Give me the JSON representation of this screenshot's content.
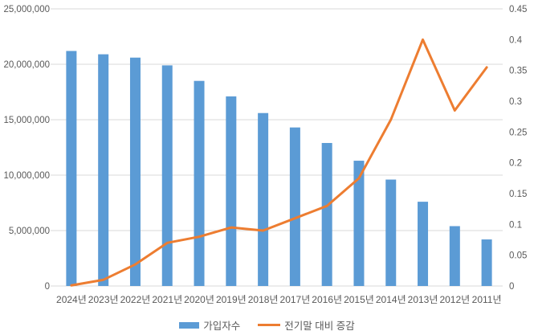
{
  "chart_data": {
    "type": "combo-bar-line",
    "title": "",
    "categories": [
      "2024년",
      "2023년",
      "2022년",
      "2021년",
      "2020년",
      "2019년",
      "2018년",
      "2017년",
      "2016년",
      "2015년",
      "2014년",
      "2013년",
      "2012년",
      "2011년"
    ],
    "series": [
      {
        "name": "가입자수",
        "type": "bar",
        "axis": "left",
        "color": "#5B9BD5",
        "values": [
          21200000,
          20900000,
          20600000,
          19900000,
          18500000,
          17100000,
          15600000,
          14300000,
          12900000,
          11300000,
          9600000,
          7600000,
          5400000,
          4200000
        ]
      },
      {
        "name": "전기말 대비 증감",
        "type": "line",
        "axis": "right",
        "color": "#ED7D31",
        "values": [
          0.001,
          0.01,
          0.035,
          0.07,
          0.08,
          0.095,
          0.09,
          0.11,
          0.13,
          0.175,
          0.27,
          0.4,
          0.285,
          0.355
        ]
      }
    ],
    "left_axis": {
      "min": 0,
      "max": 25000000,
      "step": 5000000,
      "tick_labels": [
        "0",
        "5,000,000",
        "10,000,000",
        "15,000,000",
        "20,000,000",
        "25,000,000"
      ]
    },
    "right_axis": {
      "min": 0,
      "max": 0.45,
      "step": 0.05,
      "tick_labels": [
        "0",
        "0.05",
        "0.1",
        "0.15",
        "0.2",
        "0.25",
        "0.3",
        "0.35",
        "0.4",
        "0.45"
      ]
    },
    "grid": true,
    "legend_position": "bottom",
    "styles": {
      "grid_color": "#D9D9D9",
      "axis_text_color": "#595959",
      "background": "#FFFFFF"
    }
  }
}
